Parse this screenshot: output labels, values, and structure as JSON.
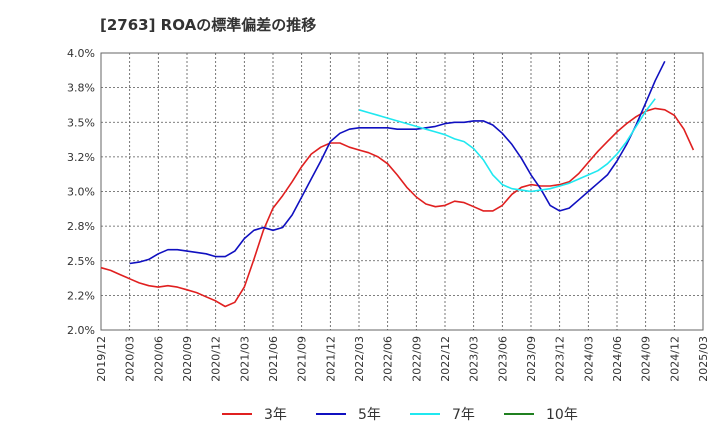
{
  "chart_data": {
    "type": "line",
    "title": "[2763]  ROAの標準偏差の推移",
    "xlabel": "",
    "ylabel": "",
    "ylim": [
      2.0,
      4.0
    ],
    "y_ticks": [
      "2.0%",
      "2.2%",
      "2.5%",
      "2.8%",
      "3.0%",
      "3.2%",
      "3.5%",
      "3.8%",
      "4.0%"
    ],
    "y_tick_values": [
      2.0,
      2.25,
      2.5,
      2.75,
      3.0,
      3.25,
      3.5,
      3.75,
      4.0
    ],
    "x_ticks": [
      "2019/12",
      "2020/03",
      "2020/06",
      "2020/09",
      "2020/12",
      "2021/03",
      "2021/06",
      "2021/09",
      "2021/12",
      "2022/03",
      "2022/06",
      "2022/09",
      "2022/12",
      "2023/03",
      "2023/06",
      "2023/09",
      "2023/12",
      "2024/03",
      "2024/06",
      "2024/09",
      "2024/12",
      "2025/03"
    ],
    "grid": true,
    "legend_position": "bottom",
    "series": [
      {
        "name": "3年",
        "color": "#e02020",
        "start_index": 0,
        "values": [
          2.45,
          2.43,
          2.4,
          2.37,
          2.34,
          2.32,
          2.31,
          2.32,
          2.31,
          2.29,
          2.27,
          2.24,
          2.21,
          2.17,
          2.2,
          2.31,
          2.51,
          2.72,
          2.88,
          2.97,
          3.07,
          3.18,
          3.27,
          3.32,
          3.35,
          3.35,
          3.32,
          3.3,
          3.28,
          3.25,
          3.2,
          3.12,
          3.03,
          2.96,
          2.91,
          2.89,
          2.9,
          2.93,
          2.92,
          2.89,
          2.86,
          2.86,
          2.9,
          2.98,
          3.03,
          3.05,
          3.04,
          3.04,
          3.05,
          3.07,
          3.13,
          3.21,
          3.29,
          3.36,
          3.43,
          3.49,
          3.54,
          3.58,
          3.6,
          3.59,
          3.55,
          3.45,
          3.3
        ]
      },
      {
        "name": "5年",
        "color": "#1010c0",
        "start_index": 3,
        "values": [
          2.48,
          2.49,
          2.51,
          2.55,
          2.58,
          2.58,
          2.57,
          2.56,
          2.55,
          2.53,
          2.53,
          2.57,
          2.66,
          2.72,
          2.74,
          2.72,
          2.74,
          2.83,
          2.96,
          3.09,
          3.22,
          3.36,
          3.42,
          3.45,
          3.46,
          3.46,
          3.46,
          3.46,
          3.45,
          3.45,
          3.45,
          3.46,
          3.47,
          3.49,
          3.5,
          3.5,
          3.51,
          3.51,
          3.48,
          3.42,
          3.34,
          3.24,
          3.12,
          3.02,
          2.9,
          2.86,
          2.88,
          2.94,
          3.0,
          3.06,
          3.12,
          3.22,
          3.34,
          3.48,
          3.64,
          3.8,
          3.94
        ]
      },
      {
        "name": "7年",
        "color": "#20e8f0",
        "start_index": 27,
        "values": [
          3.59,
          3.57,
          3.55,
          3.53,
          3.51,
          3.49,
          3.47,
          3.45,
          3.43,
          3.41,
          3.38,
          3.36,
          3.31,
          3.23,
          3.12,
          3.05,
          3.02,
          3.01,
          3.0,
          3.01,
          3.02,
          3.04,
          3.06,
          3.09,
          3.12,
          3.15,
          3.2,
          3.27,
          3.36,
          3.47,
          3.58,
          3.67
        ]
      },
      {
        "name": "10年",
        "color": "#208020",
        "start_index": 0,
        "values": []
      }
    ]
  }
}
